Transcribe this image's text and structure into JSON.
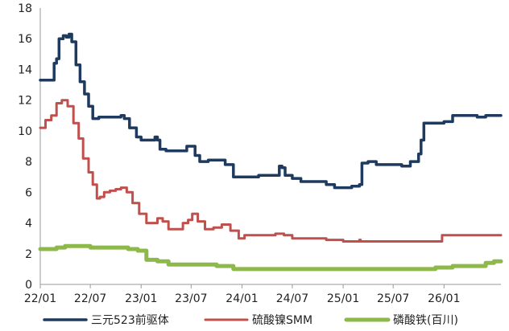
{
  "chart_data": {
    "type": "line",
    "title": "",
    "xlabel": "",
    "ylabel": "",
    "x_ticks": [
      "22/01",
      "22/07",
      "23/01",
      "23/07",
      "24/01",
      "24/07",
      "25/01",
      "25/07",
      "26/01"
    ],
    "y_ticks": [
      0,
      2,
      4,
      6,
      8,
      10,
      12,
      14,
      16,
      18
    ],
    "ylim": [
      0,
      18
    ],
    "grid": false,
    "legend_position": "bottom",
    "series": [
      {
        "name": "三元523前驱体",
        "color": "#1f3a5f",
        "points": [
          [
            "2022-01-01",
            13.3
          ],
          [
            "2022-01-20",
            13.3
          ],
          [
            "2022-02-10",
            13.3
          ],
          [
            "2022-02-20",
            14.4
          ],
          [
            "2022-03-01",
            14.7
          ],
          [
            "2022-03-10",
            16.0
          ],
          [
            "2022-03-25",
            16.2
          ],
          [
            "2022-04-05",
            16.1
          ],
          [
            "2022-04-15",
            16.3
          ],
          [
            "2022-04-25",
            15.8
          ],
          [
            "2022-05-10",
            14.3
          ],
          [
            "2022-05-25",
            13.2
          ],
          [
            "2022-06-10",
            12.4
          ],
          [
            "2022-06-25",
            11.6
          ],
          [
            "2022-07-10",
            10.8
          ],
          [
            "2022-08-01",
            10.9
          ],
          [
            "2022-09-01",
            10.9
          ],
          [
            "2022-10-01",
            10.9
          ],
          [
            "2022-10-20",
            11.0
          ],
          [
            "2022-11-01",
            10.8
          ],
          [
            "2022-11-20",
            10.2
          ],
          [
            "2022-12-15",
            9.6
          ],
          [
            "2023-01-01",
            9.4
          ],
          [
            "2023-02-01",
            9.4
          ],
          [
            "2023-02-20",
            9.6
          ],
          [
            "2023-03-01",
            9.4
          ],
          [
            "2023-03-10",
            8.8
          ],
          [
            "2023-04-01",
            8.7
          ],
          [
            "2023-05-01",
            8.7
          ],
          [
            "2023-06-01",
            8.7
          ],
          [
            "2023-06-15",
            9.0
          ],
          [
            "2023-07-01",
            9.0
          ],
          [
            "2023-07-15",
            8.4
          ],
          [
            "2023-08-01",
            8.0
          ],
          [
            "2023-09-01",
            8.1
          ],
          [
            "2023-10-01",
            8.1
          ],
          [
            "2023-11-01",
            7.8
          ],
          [
            "2023-12-01",
            7.0
          ],
          [
            "2024-01-01",
            7.0
          ],
          [
            "2024-02-01",
            7.0
          ],
          [
            "2024-03-01",
            7.1
          ],
          [
            "2024-04-01",
            7.1
          ],
          [
            "2024-05-01",
            7.1
          ],
          [
            "2024-05-15",
            7.7
          ],
          [
            "2024-05-25",
            7.6
          ],
          [
            "2024-06-05",
            7.1
          ],
          [
            "2024-07-01",
            6.9
          ],
          [
            "2024-08-01",
            6.7
          ],
          [
            "2024-09-01",
            6.7
          ],
          [
            "2024-10-01",
            6.7
          ],
          [
            "2024-11-01",
            6.5
          ],
          [
            "2024-12-01",
            6.3
          ],
          [
            "2025-01-01",
            6.3
          ],
          [
            "2025-02-01",
            6.4
          ],
          [
            "2025-03-01",
            6.5
          ],
          [
            "2025-03-10",
            7.9
          ],
          [
            "2025-04-01",
            8.0
          ],
          [
            "2025-05-01",
            7.8
          ],
          [
            "2025-06-01",
            7.8
          ],
          [
            "2025-07-01",
            7.8
          ],
          [
            "2025-08-01",
            7.7
          ],
          [
            "2025-09-01",
            8.0
          ],
          [
            "2025-10-01",
            8.5
          ],
          [
            "2025-10-10",
            9.4
          ],
          [
            "2025-10-20",
            10.5
          ],
          [
            "2025-11-01",
            10.5
          ],
          [
            "2025-12-01",
            10.5
          ],
          [
            "2026-01-01",
            10.6
          ],
          [
            "2026-02-01",
            11.0
          ],
          [
            "2026-04-01",
            11.0
          ],
          [
            "2026-05-01",
            10.9
          ],
          [
            "2026-06-01",
            11.0
          ],
          [
            "2026-07-01",
            11.0
          ]
        ]
      },
      {
        "name": "硫酸镍SMM",
        "color": "#c0504d",
        "points": [
          [
            "2022-01-01",
            10.2
          ],
          [
            "2022-01-20",
            10.7
          ],
          [
            "2022-02-10",
            11.0
          ],
          [
            "2022-03-01",
            11.8
          ],
          [
            "2022-03-20",
            12.0
          ],
          [
            "2022-04-10",
            11.6
          ],
          [
            "2022-05-01",
            10.5
          ],
          [
            "2022-05-20",
            9.5
          ],
          [
            "2022-06-05",
            8.2
          ],
          [
            "2022-06-25",
            7.3
          ],
          [
            "2022-07-10",
            6.5
          ],
          [
            "2022-07-25",
            5.6
          ],
          [
            "2022-08-05",
            5.7
          ],
          [
            "2022-08-20",
            6.0
          ],
          [
            "2022-09-10",
            6.1
          ],
          [
            "2022-10-01",
            6.2
          ],
          [
            "2022-10-20",
            6.3
          ],
          [
            "2022-11-10",
            6.0
          ],
          [
            "2022-12-01",
            5.3
          ],
          [
            "2022-12-25",
            4.6
          ],
          [
            "2023-01-20",
            4.0
          ],
          [
            "2023-02-10",
            4.0
          ],
          [
            "2023-03-01",
            4.3
          ],
          [
            "2023-03-20",
            4.1
          ],
          [
            "2023-04-10",
            3.6
          ],
          [
            "2023-05-05",
            3.6
          ],
          [
            "2023-06-01",
            4.0
          ],
          [
            "2023-06-20",
            4.2
          ],
          [
            "2023-07-05",
            4.6
          ],
          [
            "2023-07-25",
            4.1
          ],
          [
            "2023-08-20",
            3.6
          ],
          [
            "2023-09-20",
            3.7
          ],
          [
            "2023-10-20",
            3.9
          ],
          [
            "2023-11-20",
            3.5
          ],
          [
            "2023-12-20",
            3.0
          ],
          [
            "2024-01-10",
            3.2
          ],
          [
            "2024-03-01",
            3.2
          ],
          [
            "2024-04-01",
            3.2
          ],
          [
            "2024-05-01",
            3.3
          ],
          [
            "2024-06-01",
            3.2
          ],
          [
            "2024-07-01",
            3.0
          ],
          [
            "2024-09-01",
            3.0
          ],
          [
            "2024-11-01",
            2.9
          ],
          [
            "2025-01-01",
            2.8
          ],
          [
            "2025-02-20",
            2.8
          ],
          [
            "2025-03-01",
            2.9
          ],
          [
            "2025-03-05",
            2.8
          ],
          [
            "2025-05-01",
            2.8
          ],
          [
            "2025-07-01",
            2.8
          ],
          [
            "2025-09-01",
            2.8
          ],
          [
            "2025-11-01",
            2.8
          ],
          [
            "2025-12-20",
            2.8
          ],
          [
            "2025-12-25",
            3.2
          ],
          [
            "2026-03-01",
            3.2
          ],
          [
            "2026-07-01",
            3.2
          ]
        ]
      },
      {
        "name": "磷酸铁(百川)",
        "color": "#8db84a",
        "points": [
          [
            "2022-01-01",
            2.3
          ],
          [
            "2022-02-15",
            2.3
          ],
          [
            "2022-03-01",
            2.4
          ],
          [
            "2022-04-01",
            2.5
          ],
          [
            "2022-05-01",
            2.5
          ],
          [
            "2022-06-01",
            2.5
          ],
          [
            "2022-07-01",
            2.4
          ],
          [
            "2022-08-15",
            2.4
          ],
          [
            "2022-10-01",
            2.4
          ],
          [
            "2022-11-15",
            2.3
          ],
          [
            "2022-12-20",
            2.2
          ],
          [
            "2023-01-20",
            1.6
          ],
          [
            "2023-03-01",
            1.5
          ],
          [
            "2023-04-10",
            1.3
          ],
          [
            "2023-06-01",
            1.3
          ],
          [
            "2023-07-01",
            1.3
          ],
          [
            "2023-08-01",
            1.3
          ],
          [
            "2023-10-01",
            1.2
          ],
          [
            "2023-12-01",
            1.0
          ],
          [
            "2024-03-01",
            1.0
          ],
          [
            "2024-06-01",
            1.0
          ],
          [
            "2024-09-01",
            1.0
          ],
          [
            "2024-12-01",
            1.0
          ],
          [
            "2025-03-01",
            1.0
          ],
          [
            "2025-07-01",
            1.0
          ],
          [
            "2025-10-01",
            1.0
          ],
          [
            "2025-12-01",
            1.1
          ],
          [
            "2026-02-01",
            1.2
          ],
          [
            "2026-04-01",
            1.2
          ],
          [
            "2026-06-01",
            1.4
          ],
          [
            "2026-07-01",
            1.5
          ]
        ]
      }
    ]
  }
}
